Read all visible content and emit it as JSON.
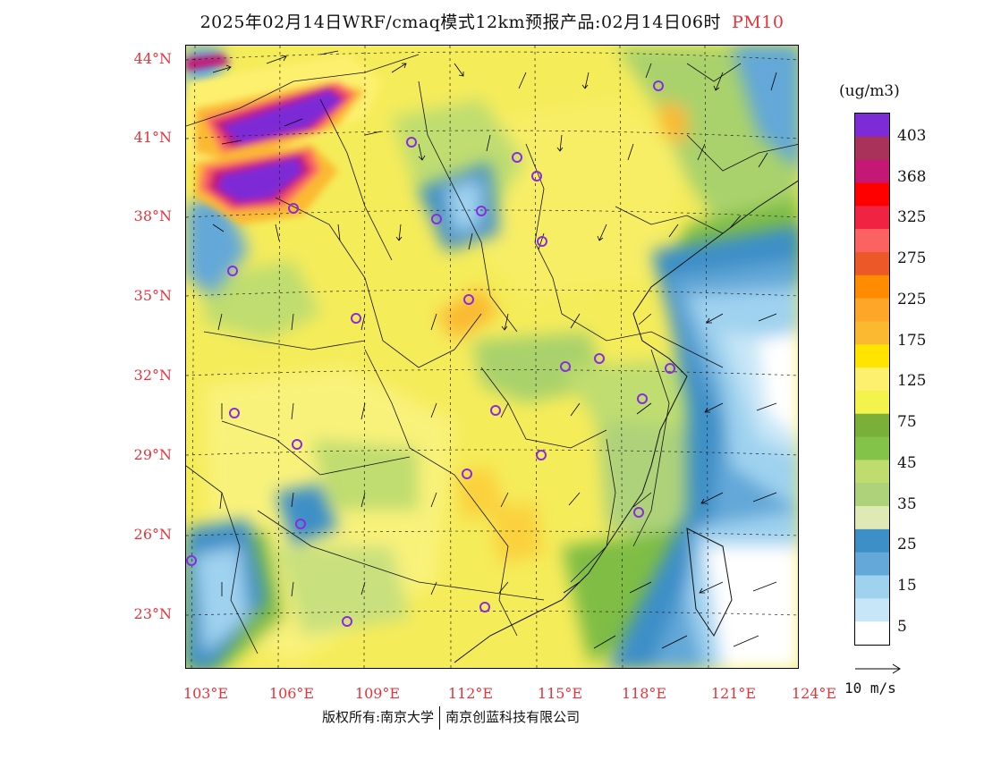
{
  "header": {
    "title": "2025年02月14日WRF/cmaq模式12km预报产品:02月14日06时",
    "species": "PM10"
  },
  "map": {
    "lat_labels": [
      "44°N",
      "41°N",
      "38°N",
      "35°N",
      "32°N",
      "29°N",
      "26°N",
      "23°N"
    ],
    "lon_labels": [
      "103°E",
      "106°E",
      "109°E",
      "112°E",
      "115°E",
      "118°E",
      "121°E",
      "124°E"
    ],
    "wind_reference": "10 m/s"
  },
  "legend": {
    "unit": "(ug/m3)",
    "labels": [
      "403",
      "368",
      "325",
      "275",
      "225",
      "175",
      "125",
      "75",
      "45",
      "35",
      "25",
      "15",
      "5"
    ],
    "colors": [
      "#7d2bd6",
      "#a8325a",
      "#c51875",
      "#ff0000",
      "#f02442",
      "#fb6262",
      "#ec5827",
      "#ff8c00",
      "#fda628",
      "#fbb932",
      "#ffe400",
      "#fdf06e",
      "#f3f34d",
      "#7ab03a",
      "#84c34a",
      "#bfdd6f",
      "#aed27a",
      "#dfe9b5",
      "#3c8fc7",
      "#63a8d8",
      "#9fd2ef",
      "#c7e6f7",
      "#ffffff"
    ]
  },
  "footer": {
    "copyright": "版权所有:南京大学",
    "company": "南京创蓝科技有限公司"
  }
}
